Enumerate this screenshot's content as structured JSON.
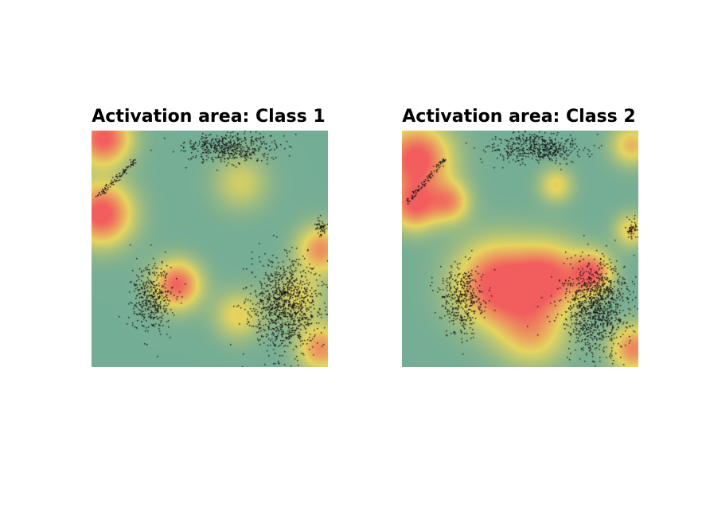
{
  "chart_data": [
    {
      "type": "heatmap",
      "title": "Activation area: Class 1",
      "xlabel": "",
      "ylabel": "",
      "colormap": {
        "low": "#5fa5a0",
        "mid": "#e5d55f",
        "high": "#f25e5e"
      },
      "background_color": "#7fb09a",
      "hotspots": [
        {
          "x": 0.05,
          "y": 0.03,
          "intensity": 0.95,
          "spread": 0.08
        },
        {
          "x": 0.04,
          "y": 0.35,
          "intensity": 1.0,
          "spread": 0.09
        },
        {
          "x": 0.36,
          "y": 0.65,
          "intensity": 0.9,
          "spread": 0.07
        },
        {
          "x": 0.62,
          "y": 0.78,
          "intensity": 0.45,
          "spread": 0.07
        },
        {
          "x": 0.97,
          "y": 0.5,
          "intensity": 0.7,
          "spread": 0.07
        },
        {
          "x": 0.97,
          "y": 0.92,
          "intensity": 0.7,
          "spread": 0.07
        },
        {
          "x": 0.63,
          "y": 0.22,
          "intensity": 0.35,
          "spread": 0.08
        },
        {
          "x": 0.88,
          "y": 0.7,
          "intensity": 0.4,
          "spread": 0.08
        }
      ],
      "point_clusters": [
        {
          "type": "ellipse",
          "cx": 0.58,
          "cy": 0.07,
          "rx": 0.21,
          "ry": 0.07,
          "count": 480
        },
        {
          "type": "line",
          "x1": 0.02,
          "y1": 0.28,
          "x2": 0.19,
          "y2": 0.12,
          "count": 90
        },
        {
          "type": "ellipse",
          "cx": 0.25,
          "cy": 0.71,
          "rx": 0.1,
          "ry": 0.16,
          "count": 420
        },
        {
          "type": "ellipse",
          "cx": 0.82,
          "cy": 0.74,
          "rx": 0.16,
          "ry": 0.22,
          "count": 1100
        },
        {
          "type": "ellipse",
          "cx": 0.97,
          "cy": 0.41,
          "rx": 0.03,
          "ry": 0.04,
          "count": 50
        }
      ]
    },
    {
      "type": "heatmap",
      "title": "Activation area: Class 2",
      "xlabel": "",
      "ylabel": "",
      "colormap": {
        "low": "#5fa5a0",
        "mid": "#e5d55f",
        "high": "#f25e5e"
      },
      "background_color": "#8ab58f",
      "hotspots": [
        {
          "x": 0.06,
          "y": 0.12,
          "intensity": 1.0,
          "spread": 0.1
        },
        {
          "x": 0.05,
          "y": 0.32,
          "intensity": 0.8,
          "spread": 0.07
        },
        {
          "x": 0.2,
          "y": 0.3,
          "intensity": 0.65,
          "spread": 0.06
        },
        {
          "x": 0.65,
          "y": 0.23,
          "intensity": 0.45,
          "spread": 0.05
        },
        {
          "x": 0.97,
          "y": 0.06,
          "intensity": 0.55,
          "spread": 0.06
        },
        {
          "x": 0.4,
          "y": 0.65,
          "intensity": 1.0,
          "spread": 0.12
        },
        {
          "x": 0.62,
          "y": 0.62,
          "intensity": 0.85,
          "spread": 0.1
        },
        {
          "x": 0.8,
          "y": 0.6,
          "intensity": 0.85,
          "spread": 0.06
        },
        {
          "x": 0.55,
          "y": 0.85,
          "intensity": 0.55,
          "spread": 0.1
        },
        {
          "x": 0.98,
          "y": 0.92,
          "intensity": 0.75,
          "spread": 0.07
        },
        {
          "x": 0.97,
          "y": 0.42,
          "intensity": 0.5,
          "spread": 0.05
        }
      ],
      "point_clusters": [
        {
          "type": "ellipse",
          "cx": 0.58,
          "cy": 0.07,
          "rx": 0.21,
          "ry": 0.07,
          "count": 480
        },
        {
          "type": "line",
          "x1": 0.02,
          "y1": 0.3,
          "x2": 0.18,
          "y2": 0.12,
          "count": 90
        },
        {
          "type": "ellipse",
          "cx": 0.25,
          "cy": 0.71,
          "rx": 0.1,
          "ry": 0.16,
          "count": 420
        },
        {
          "type": "ellipse",
          "cx": 0.82,
          "cy": 0.74,
          "rx": 0.16,
          "ry": 0.22,
          "count": 1100
        },
        {
          "type": "ellipse",
          "cx": 0.97,
          "cy": 0.41,
          "rx": 0.03,
          "ry": 0.04,
          "count": 50
        }
      ]
    }
  ]
}
